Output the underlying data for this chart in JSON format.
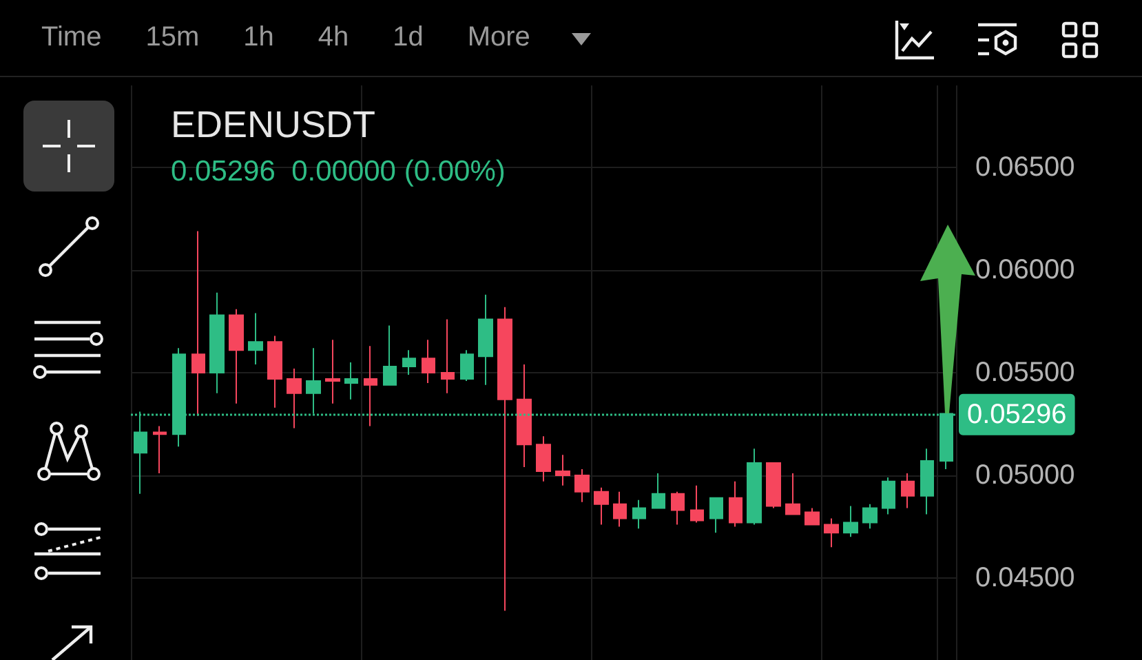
{
  "chart_data": {
    "type": "candlestick",
    "title": "EDENUSDT",
    "subtitle": "0.05296  0.00000 (0.00%)",
    "annotations": [
      "Time",
      "15m",
      "1h",
      "4h",
      "1d",
      "More"
    ],
    "categories": [
      null,
      null,
      null,
      null,
      null,
      null,
      null,
      null,
      null,
      null,
      null,
      null,
      null,
      null,
      null,
      null,
      null,
      null,
      null,
      null,
      null,
      null,
      null,
      null,
      null,
      null,
      null,
      null,
      null,
      null,
      null,
      null,
      null,
      null,
      null,
      null,
      null,
      null,
      null,
      null,
      null,
      null,
      null
    ],
    "ohlc": [
      [
        0.0511,
        0.0531,
        0.0491,
        0.0521
      ],
      [
        0.0521,
        0.0524,
        0.0501,
        0.052
      ],
      [
        0.052,
        0.0562,
        0.0514,
        0.0559
      ],
      [
        0.0559,
        0.0619,
        0.0529,
        0.055
      ],
      [
        0.055,
        0.0589,
        0.054,
        0.0578
      ],
      [
        0.0578,
        0.0581,
        0.0535,
        0.0561
      ],
      [
        0.0561,
        0.0579,
        0.0554,
        0.0565
      ],
      [
        0.0565,
        0.0568,
        0.0533,
        0.0547
      ],
      [
        0.0547,
        0.0552,
        0.0523,
        0.054
      ],
      [
        0.054,
        0.0562,
        0.053,
        0.0546
      ],
      [
        0.0547,
        0.0566,
        0.0535,
        0.0546
      ],
      [
        0.0545,
        0.0555,
        0.0537,
        0.0547
      ],
      [
        0.0547,
        0.0563,
        0.0524,
        0.0544
      ],
      [
        0.0544,
        0.0573,
        0.0544,
        0.0553
      ],
      [
        0.0553,
        0.0561,
        0.0549,
        0.0557
      ],
      [
        0.0557,
        0.0566,
        0.0545,
        0.055
      ],
      [
        0.055,
        0.0576,
        0.054,
        0.0547
      ],
      [
        0.0547,
        0.0561,
        0.0546,
        0.0559
      ],
      [
        0.0558,
        0.0588,
        0.0544,
        0.0576
      ],
      [
        0.0576,
        0.0582,
        0.0434,
        0.0537
      ],
      [
        0.0537,
        0.0554,
        0.0504,
        0.0515
      ],
      [
        0.0515,
        0.0519,
        0.0497,
        0.0502
      ],
      [
        0.0502,
        0.051,
        0.0495,
        0.05
      ],
      [
        0.05,
        0.0503,
        0.0487,
        0.0492
      ],
      [
        0.0492,
        0.0494,
        0.0476,
        0.0486
      ],
      [
        0.0486,
        0.0492,
        0.0475,
        0.0479
      ],
      [
        0.0479,
        0.0488,
        0.0474,
        0.0484
      ],
      [
        0.0484,
        0.0501,
        0.0484,
        0.0491
      ],
      [
        0.0491,
        0.0492,
        0.0476,
        0.0483
      ],
      [
        0.0483,
        0.0495,
        0.0477,
        0.0478
      ],
      [
        0.0479,
        0.0489,
        0.0472,
        0.0489
      ],
      [
        0.0489,
        0.0497,
        0.0475,
        0.0477
      ],
      [
        0.0477,
        0.0513,
        0.0476,
        0.0506
      ],
      [
        0.0506,
        0.0506,
        0.0484,
        0.0485
      ],
      [
        0.0486,
        0.0501,
        0.0481,
        0.0481
      ],
      [
        0.0482,
        0.0484,
        0.0476,
        0.0476
      ],
      [
        0.0476,
        0.0479,
        0.0465,
        0.0472
      ],
      [
        0.0472,
        0.0485,
        0.047,
        0.0477
      ],
      [
        0.0477,
        0.0486,
        0.0474,
        0.0484
      ],
      [
        0.0484,
        0.0499,
        0.0481,
        0.0497
      ],
      [
        0.0497,
        0.0501,
        0.0484,
        0.049
      ],
      [
        0.049,
        0.0513,
        0.0481,
        0.0507
      ],
      [
        0.0507,
        0.053,
        0.0503,
        0.053
      ]
    ],
    "colors": [
      "#2ebd85",
      "#f6465d",
      "#2ebd85",
      "#f6465d",
      "#2ebd85",
      "#f6465d",
      "#2ebd85",
      "#f6465d",
      "#f6465d",
      "#2ebd85",
      "#f6465d",
      "#2ebd85",
      "#f6465d",
      "#2ebd85",
      "#2ebd85",
      "#f6465d",
      "#f6465d",
      "#2ebd85",
      "#2ebd85",
      "#f6465d",
      "#f6465d",
      "#f6465d",
      "#f6465d",
      "#f6465d",
      "#f6465d",
      "#f6465d",
      "#2ebd85",
      "#2ebd85",
      "#f6465d",
      "#f6465d",
      "#2ebd85",
      "#f6465d",
      "#2ebd85",
      "#f6465d",
      "#f6465d",
      "#f6465d",
      "#f6465d",
      "#2ebd85",
      "#2ebd85",
      "#2ebd85",
      "#f6465d",
      "#2ebd85",
      "#2ebd85"
    ],
    "ylim": [
      0.041,
      0.069
    ],
    "yticks": [
      {
        "value": 0.045,
        "label": "0.04500"
      },
      {
        "value": 0.05,
        "label": "0.05000"
      },
      {
        "value": 0.055,
        "label": "0.05500"
      },
      {
        "value": 0.06,
        "label": "0.06000"
      },
      {
        "value": 0.065,
        "label": "0.06500"
      }
    ],
    "ref_lines": [
      {
        "axis": "y",
        "value": 0.05296,
        "label": "0.05296",
        "color": "#2ebd85",
        "line_style": "dotted"
      }
    ],
    "grid": true,
    "tick_labels": "y"
  }
}
